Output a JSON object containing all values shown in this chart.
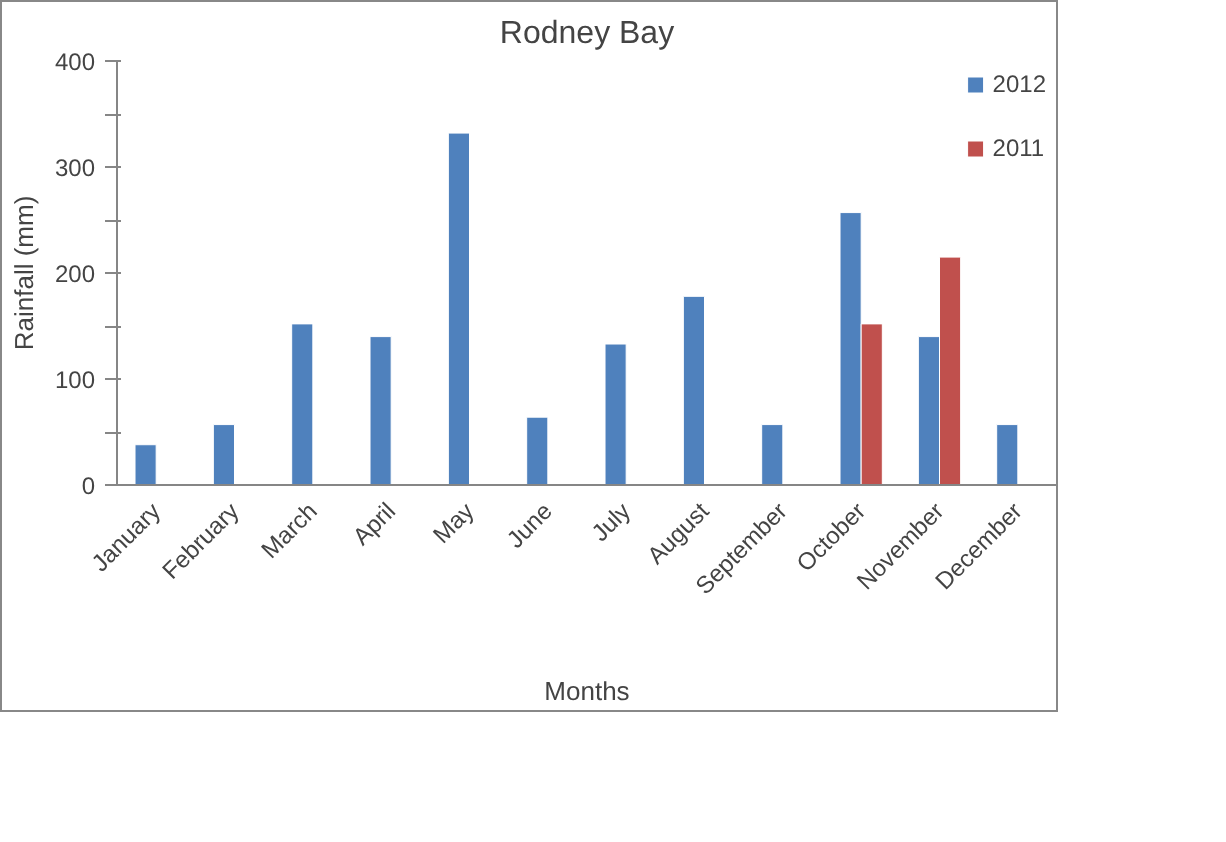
{
  "chart_data": {
    "type": "bar",
    "title": "Rodney Bay",
    "xlabel": "Months",
    "ylabel": "Rainfall (mm)",
    "categories": [
      "January",
      "February",
      "March",
      "April",
      "May",
      "June",
      "July",
      "August",
      "September",
      "October",
      "November",
      "December"
    ],
    "series": [
      {
        "name": "2012",
        "color": "#4f81bd",
        "values": [
          38,
          57,
          152,
          140,
          332,
          64,
          133,
          178,
          57,
          257,
          140,
          57
        ]
      },
      {
        "name": "2011",
        "color": "#c0504d",
        "values": [
          null,
          null,
          null,
          null,
          null,
          null,
          null,
          null,
          null,
          152,
          215,
          null
        ]
      }
    ],
    "ylim": [
      0,
      400
    ],
    "yticks": [
      0,
      {
        "value": 50,
        "label": null
      },
      100,
      {
        "value": 150,
        "label": null
      },
      200,
      {
        "value": 250,
        "label": null
      },
      300,
      {
        "value": 350,
        "label": null
      },
      400
    ],
    "grid": false,
    "legend": "top right"
  }
}
